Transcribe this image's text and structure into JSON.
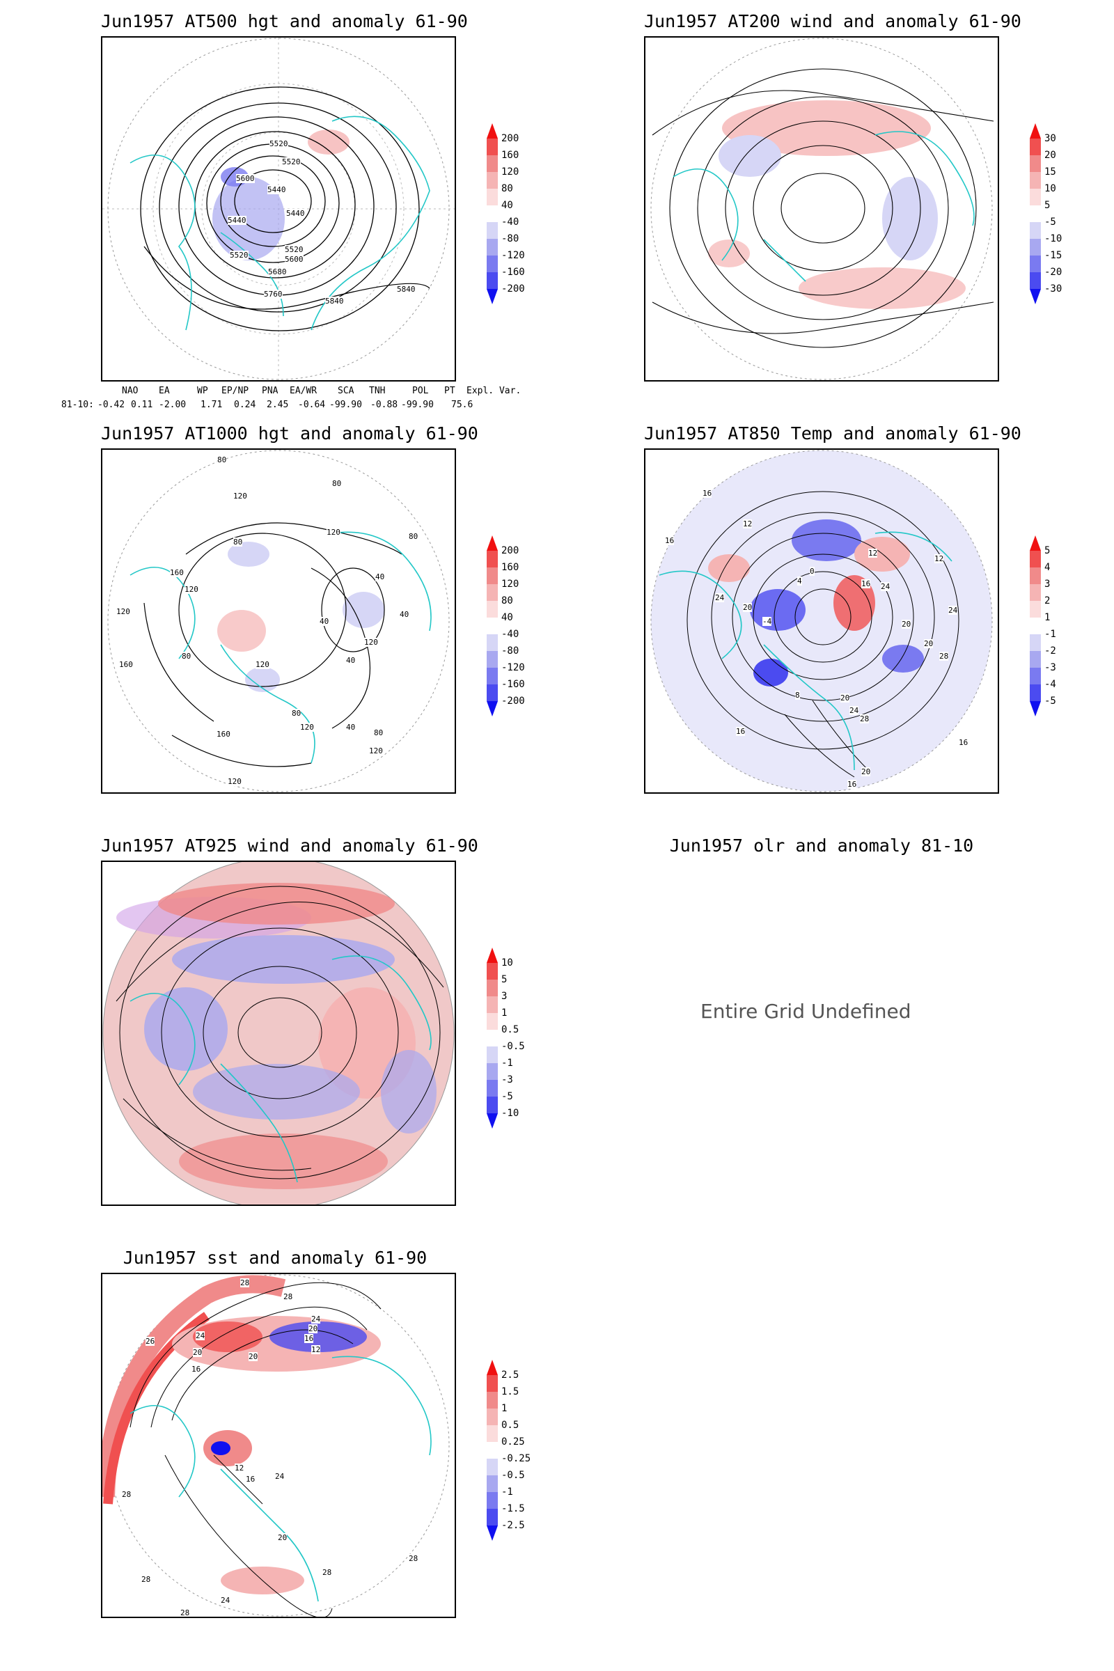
{
  "panels": [
    {
      "title": "Jun1957 AT500 hgt and anomaly 61-90",
      "contour_labels": [
        "5520",
        "5520",
        "5600",
        "5440",
        "5440",
        "5440",
        "5520",
        "5600",
        "5680",
        "5760",
        "5840",
        "5840",
        "5520"
      ],
      "colorbar": {
        "labels": [
          "200",
          "160",
          "120",
          "80",
          "40",
          "-40",
          "-80",
          "-120",
          "-160",
          "-200"
        ],
        "colors": [
          "#f01010",
          "#f05050",
          "#f08a8a",
          "#f5b4b4",
          "#fbdcdc",
          "#ffffff",
          "#d6d6f6",
          "#a8a8f0",
          "#7a7af0",
          "#4b4bf0",
          "#1010f0"
        ]
      }
    },
    {
      "title": "Jun1957 AT200 wind and anomaly 61-90",
      "contour_labels": [],
      "colorbar": {
        "labels": [
          "30",
          "20",
          "15",
          "10",
          "5",
          "-5",
          "-10",
          "-15",
          "-20",
          "-30"
        ],
        "colors": [
          "#f01010",
          "#f05050",
          "#f08a8a",
          "#f5b4b4",
          "#fbdcdc",
          "#ffffff",
          "#d6d6f6",
          "#a8a8f0",
          "#7a7af0",
          "#4b4bf0",
          "#1010f0"
        ]
      }
    },
    {
      "title": "Jun1957 AT1000 hgt and anomaly 61-90",
      "contour_labels": [
        "80",
        "80",
        "120",
        "120",
        "160",
        "120",
        "80",
        "80",
        "120",
        "40",
        "40",
        "120",
        "160",
        "160",
        "40",
        "80",
        "120",
        "80",
        "40",
        "120",
        "120",
        "40",
        "80",
        "120"
      ],
      "colorbar": {
        "labels": [
          "200",
          "160",
          "120",
          "80",
          "40",
          "-40",
          "-80",
          "-120",
          "-160",
          "-200"
        ],
        "colors": [
          "#f01010",
          "#f05050",
          "#f08a8a",
          "#f5b4b4",
          "#fbdcdc",
          "#ffffff",
          "#d6d6f6",
          "#a8a8f0",
          "#7a7af0",
          "#4b4bf0",
          "#1010f0"
        ]
      }
    },
    {
      "title": "Jun1957 AT850 Temp and anomaly 61-90",
      "contour_labels": [
        "16",
        "12",
        "16",
        "20",
        "24",
        "0",
        "4",
        "-4",
        "8",
        "12",
        "16",
        "20",
        "24",
        "28",
        "20",
        "24",
        "16",
        "16",
        "12",
        "20",
        "24",
        "28",
        "20",
        "16"
      ],
      "colorbar": {
        "labels": [
          "5",
          "4",
          "3",
          "2",
          "1",
          "-1",
          "-2",
          "-3",
          "-4",
          "-5"
        ],
        "colors": [
          "#f01010",
          "#f05050",
          "#f08a8a",
          "#f5b4b4",
          "#fbdcdc",
          "#ffffff",
          "#d6d6f6",
          "#a8a8f0",
          "#7a7af0",
          "#4b4bf0",
          "#1010f0"
        ]
      }
    },
    {
      "title": "Jun1957 AT925 wind and anomaly 61-90",
      "contour_labels": [],
      "colorbar": {
        "labels": [
          "10",
          "5",
          "3",
          "1",
          "0.5",
          "-0.5",
          "-1",
          "-3",
          "-5",
          "-10"
        ],
        "colors": [
          "#f01010",
          "#f05050",
          "#f08a8a",
          "#f5b4b4",
          "#fbdcdc",
          "#ffffff",
          "#d6d6f6",
          "#a8a8f0",
          "#7a7af0",
          "#4b4bf0",
          "#1010f0"
        ]
      }
    },
    {
      "title": "Jun1957 olr and anomaly 81-10",
      "undefined_text": "Entire Grid Undefined"
    },
    {
      "title": "Jun1957 sst and anomaly 61-90",
      "contour_labels": [
        "28",
        "28",
        "26",
        "24",
        "20",
        "16",
        "24",
        "20",
        "16",
        "12",
        "20",
        "24",
        "28",
        "28",
        "28",
        "24",
        "20",
        "16",
        "12",
        "28",
        "28"
      ],
      "colorbar": {
        "labels": [
          "2.5",
          "1.5",
          "1",
          "0.5",
          "0.25",
          "-0.25",
          "-0.5",
          "-1",
          "-1.5",
          "-2.5"
        ],
        "colors": [
          "#f01010",
          "#f05050",
          "#f08a8a",
          "#f5b4b4",
          "#fbdcdc",
          "#ffffff",
          "#d6d6f6",
          "#a8a8f0",
          "#7a7af0",
          "#4b4bf0",
          "#1010f0"
        ]
      }
    }
  ],
  "indices": {
    "headers": [
      "NAO",
      "EA",
      "WP",
      "EP/NP",
      "PNA",
      "EA/WR",
      "SCA",
      "TNH",
      "POL",
      "PT",
      "Expl. Var."
    ],
    "row_label": "81-10:",
    "values": [
      "-0.42",
      "0.11",
      "-2.00",
      "1.71",
      "0.24",
      "2.45",
      "-0.64",
      "-99.90",
      "-0.88",
      "-99.90",
      "75.6"
    ]
  },
  "colors": {
    "coastline": "#22c7c7",
    "contour": "#000000",
    "frame": "#000000"
  }
}
